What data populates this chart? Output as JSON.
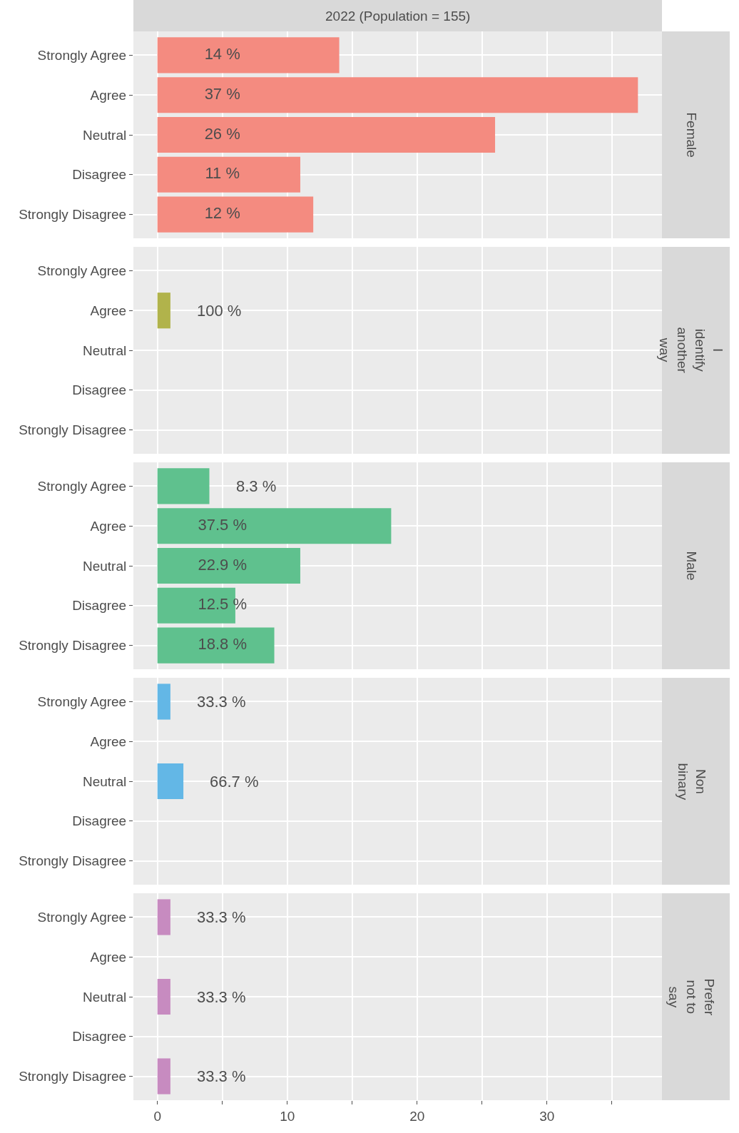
{
  "chart_data": [
    {
      "type": "bar",
      "orientation": "horizontal",
      "title": "2022 (Population = 155)",
      "categories": [
        "Strongly Agree",
        "Agree",
        "Neutral",
        "Disagree",
        "Strongly Disagree"
      ],
      "values": [
        14,
        37,
        26,
        11,
        12
      ],
      "color": "#f48b80",
      "xlim": [
        -1.85,
        38.85
      ],
      "xticks": [
        0,
        {
          "value": 5,
          "label": null
        },
        10,
        {
          "value": 15,
          "label": null
        },
        20,
        {
          "value": 25,
          "label": null
        },
        30,
        {
          "value": 35,
          "label": null
        }
      ],
      "grid": true,
      "tick_labels": "y",
      "annotations": [
        "Female",
        {
          "text": "14 %",
          "y": "Strongly Agree"
        },
        {
          "text": "37 %",
          "y": "Agree"
        },
        {
          "text": "26 %",
          "y": "Neutral"
        },
        {
          "text": "11 %",
          "y": "Disagree"
        },
        {
          "text": "12 %",
          "y": "Strongly Disagree"
        }
      ]
    },
    {
      "type": "bar",
      "orientation": "horizontal",
      "categories": [
        "Strongly Agree",
        "Agree",
        "Neutral",
        "Disagree",
        "Strongly Disagree"
      ],
      "values": [
        null,
        1,
        null,
        null,
        null
      ],
      "color": "#b1b34b",
      "xlim": [
        -1.85,
        38.85
      ],
      "xticks": [
        0,
        {
          "value": 5,
          "label": null
        },
        10,
        {
          "value": 15,
          "label": null
        },
        20,
        {
          "value": 25,
          "label": null
        },
        30,
        {
          "value": 35,
          "label": null
        }
      ],
      "grid": true,
      "tick_labels": "y",
      "annotations": [
        "I identify another way",
        {
          "text": "100 %",
          "x": 1,
          "y": "Agree"
        }
      ]
    },
    {
      "type": "bar",
      "orientation": "horizontal",
      "categories": [
        "Strongly Agree",
        "Agree",
        "Neutral",
        "Disagree",
        "Strongly Disagree"
      ],
      "values": [
        4,
        18,
        11,
        6,
        9
      ],
      "color": "#5fc18e",
      "xlim": [
        -1.85,
        38.85
      ],
      "xticks": [
        0,
        {
          "value": 5,
          "label": null
        },
        10,
        {
          "value": 15,
          "label": null
        },
        20,
        {
          "value": 25,
          "label": null
        },
        30,
        {
          "value": 35,
          "label": null
        }
      ],
      "grid": true,
      "tick_labels": "y",
      "annotations": [
        "Male",
        {
          "text": "8.3 %",
          "x": 4,
          "y": "Strongly Agree"
        },
        {
          "text": "37.5 %",
          "y": "Agree"
        },
        {
          "text": "22.9 %",
          "y": "Neutral"
        },
        {
          "text": "12.5 %",
          "y": "Disagree"
        },
        {
          "text": "18.8 %",
          "y": "Strongly Disagree"
        }
      ]
    },
    {
      "type": "bar",
      "orientation": "horizontal",
      "categories": [
        "Strongly Agree",
        "Agree",
        "Neutral",
        "Disagree",
        "Strongly Disagree"
      ],
      "values": [
        1,
        null,
        2,
        null,
        null
      ],
      "color": "#63b7e6",
      "xlim": [
        -1.85,
        38.85
      ],
      "xticks": [
        0,
        {
          "value": 5,
          "label": null
        },
        10,
        {
          "value": 15,
          "label": null
        },
        20,
        {
          "value": 25,
          "label": null
        },
        30,
        {
          "value": 35,
          "label": null
        }
      ],
      "grid": true,
      "tick_labels": "y",
      "annotations": [
        "Non binary",
        {
          "text": "33.3 %",
          "x": 1,
          "y": "Strongly Agree"
        },
        {
          "text": "66.7 %",
          "x": 2,
          "y": "Neutral"
        }
      ]
    },
    {
      "type": "bar",
      "orientation": "horizontal",
      "categories": [
        "Strongly Agree",
        "Agree",
        "Neutral",
        "Disagree",
        "Strongly Disagree"
      ],
      "values": [
        1,
        null,
        1,
        null,
        1
      ],
      "color": "#c78bc0",
      "xlim": [
        -1.85,
        38.85
      ],
      "xticks": [
        0,
        {
          "value": 5,
          "label": null
        },
        10,
        {
          "value": 15,
          "label": null
        },
        20,
        {
          "value": 25,
          "label": null
        },
        30,
        {
          "value": 35,
          "label": null
        }
      ],
      "grid": true,
      "annotations": [
        "Prefer not to say",
        {
          "text": "33.3 %",
          "x": 1,
          "y": "Strongly Agree"
        },
        {
          "text": "33.3 %",
          "x": 1,
          "y": "Neutral"
        },
        {
          "text": "33.3 %",
          "x": 1,
          "y": "Strongly Disagree"
        }
      ]
    }
  ]
}
